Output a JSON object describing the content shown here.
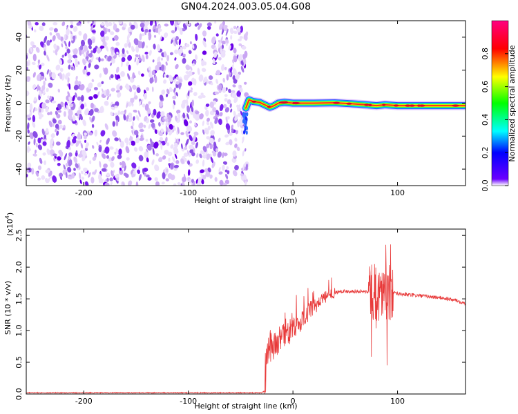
{
  "title": "GN04.2024.003.05.04.G08",
  "chart_data": [
    {
      "type": "heatmap",
      "xlabel": "Height of straight line (km)",
      "ylabel": "Frequency (Hz)",
      "xlim": [
        -255,
        165
      ],
      "ylim": [
        -50,
        50
      ],
      "xticks": [
        -200,
        -100,
        0,
        100
      ],
      "yticks": [
        -40,
        -20,
        0,
        20,
        40
      ],
      "noise_region_x": [
        -255,
        -45
      ],
      "ridge": [
        [
          -45,
          -3
        ],
        [
          -42,
          2
        ],
        [
          -38,
          1
        ],
        [
          -32,
          0.5
        ],
        [
          -27,
          -1
        ],
        [
          -22,
          -2.5
        ],
        [
          -18,
          -1.5
        ],
        [
          -14,
          0
        ],
        [
          -8,
          0.5
        ],
        [
          0,
          0
        ],
        [
          20,
          0
        ],
        [
          40,
          0.2
        ],
        [
          60,
          -0.5
        ],
        [
          70,
          -1
        ],
        [
          80,
          -1.5
        ],
        [
          88,
          -1
        ],
        [
          100,
          -1.5
        ],
        [
          120,
          -1.5
        ],
        [
          140,
          -1.5
        ],
        [
          165,
          -1.5
        ]
      ],
      "colorbar": {
        "label": "Normalized spectral amplitude",
        "ticks": [
          "0.0",
          "0.2",
          "0.4",
          "0.6",
          "0.8"
        ],
        "range": [
          0,
          1
        ]
      }
    },
    {
      "type": "line",
      "xlabel": "Height of straight line (km)",
      "ylabel": "SNR (10 * v/v)",
      "scale_label": "(x10",
      "scale_exp": "4",
      "scale_close": ")",
      "xlim": [
        -255,
        165
      ],
      "ylim": [
        0,
        2.6
      ],
      "xticks": [
        -200,
        -100,
        0,
        100
      ],
      "yticks": [
        "0.0",
        "0.5",
        "1.0",
        "1.5",
        "2.0",
        "2.5"
      ],
      "color": "#e83a3a",
      "envelope": [
        [
          -255,
          0.02
        ],
        [
          -200,
          0.02
        ],
        [
          -100,
          0.02
        ],
        [
          -30,
          0.02
        ],
        [
          -27,
          0.05
        ],
        [
          -25,
          0.6
        ],
        [
          -22,
          0.75
        ],
        [
          -15,
          0.8
        ],
        [
          -5,
          0.95
        ],
        [
          5,
          1.1
        ],
        [
          15,
          1.3
        ],
        [
          25,
          1.45
        ],
        [
          35,
          1.57
        ],
        [
          45,
          1.62
        ],
        [
          60,
          1.62
        ],
        [
          70,
          1.61
        ],
        [
          80,
          1.6
        ],
        [
          90,
          1.6
        ],
        [
          100,
          1.58
        ],
        [
          120,
          1.55
        ],
        [
          140,
          1.52
        ],
        [
          155,
          1.48
        ],
        [
          165,
          1.43
        ]
      ]
    }
  ]
}
